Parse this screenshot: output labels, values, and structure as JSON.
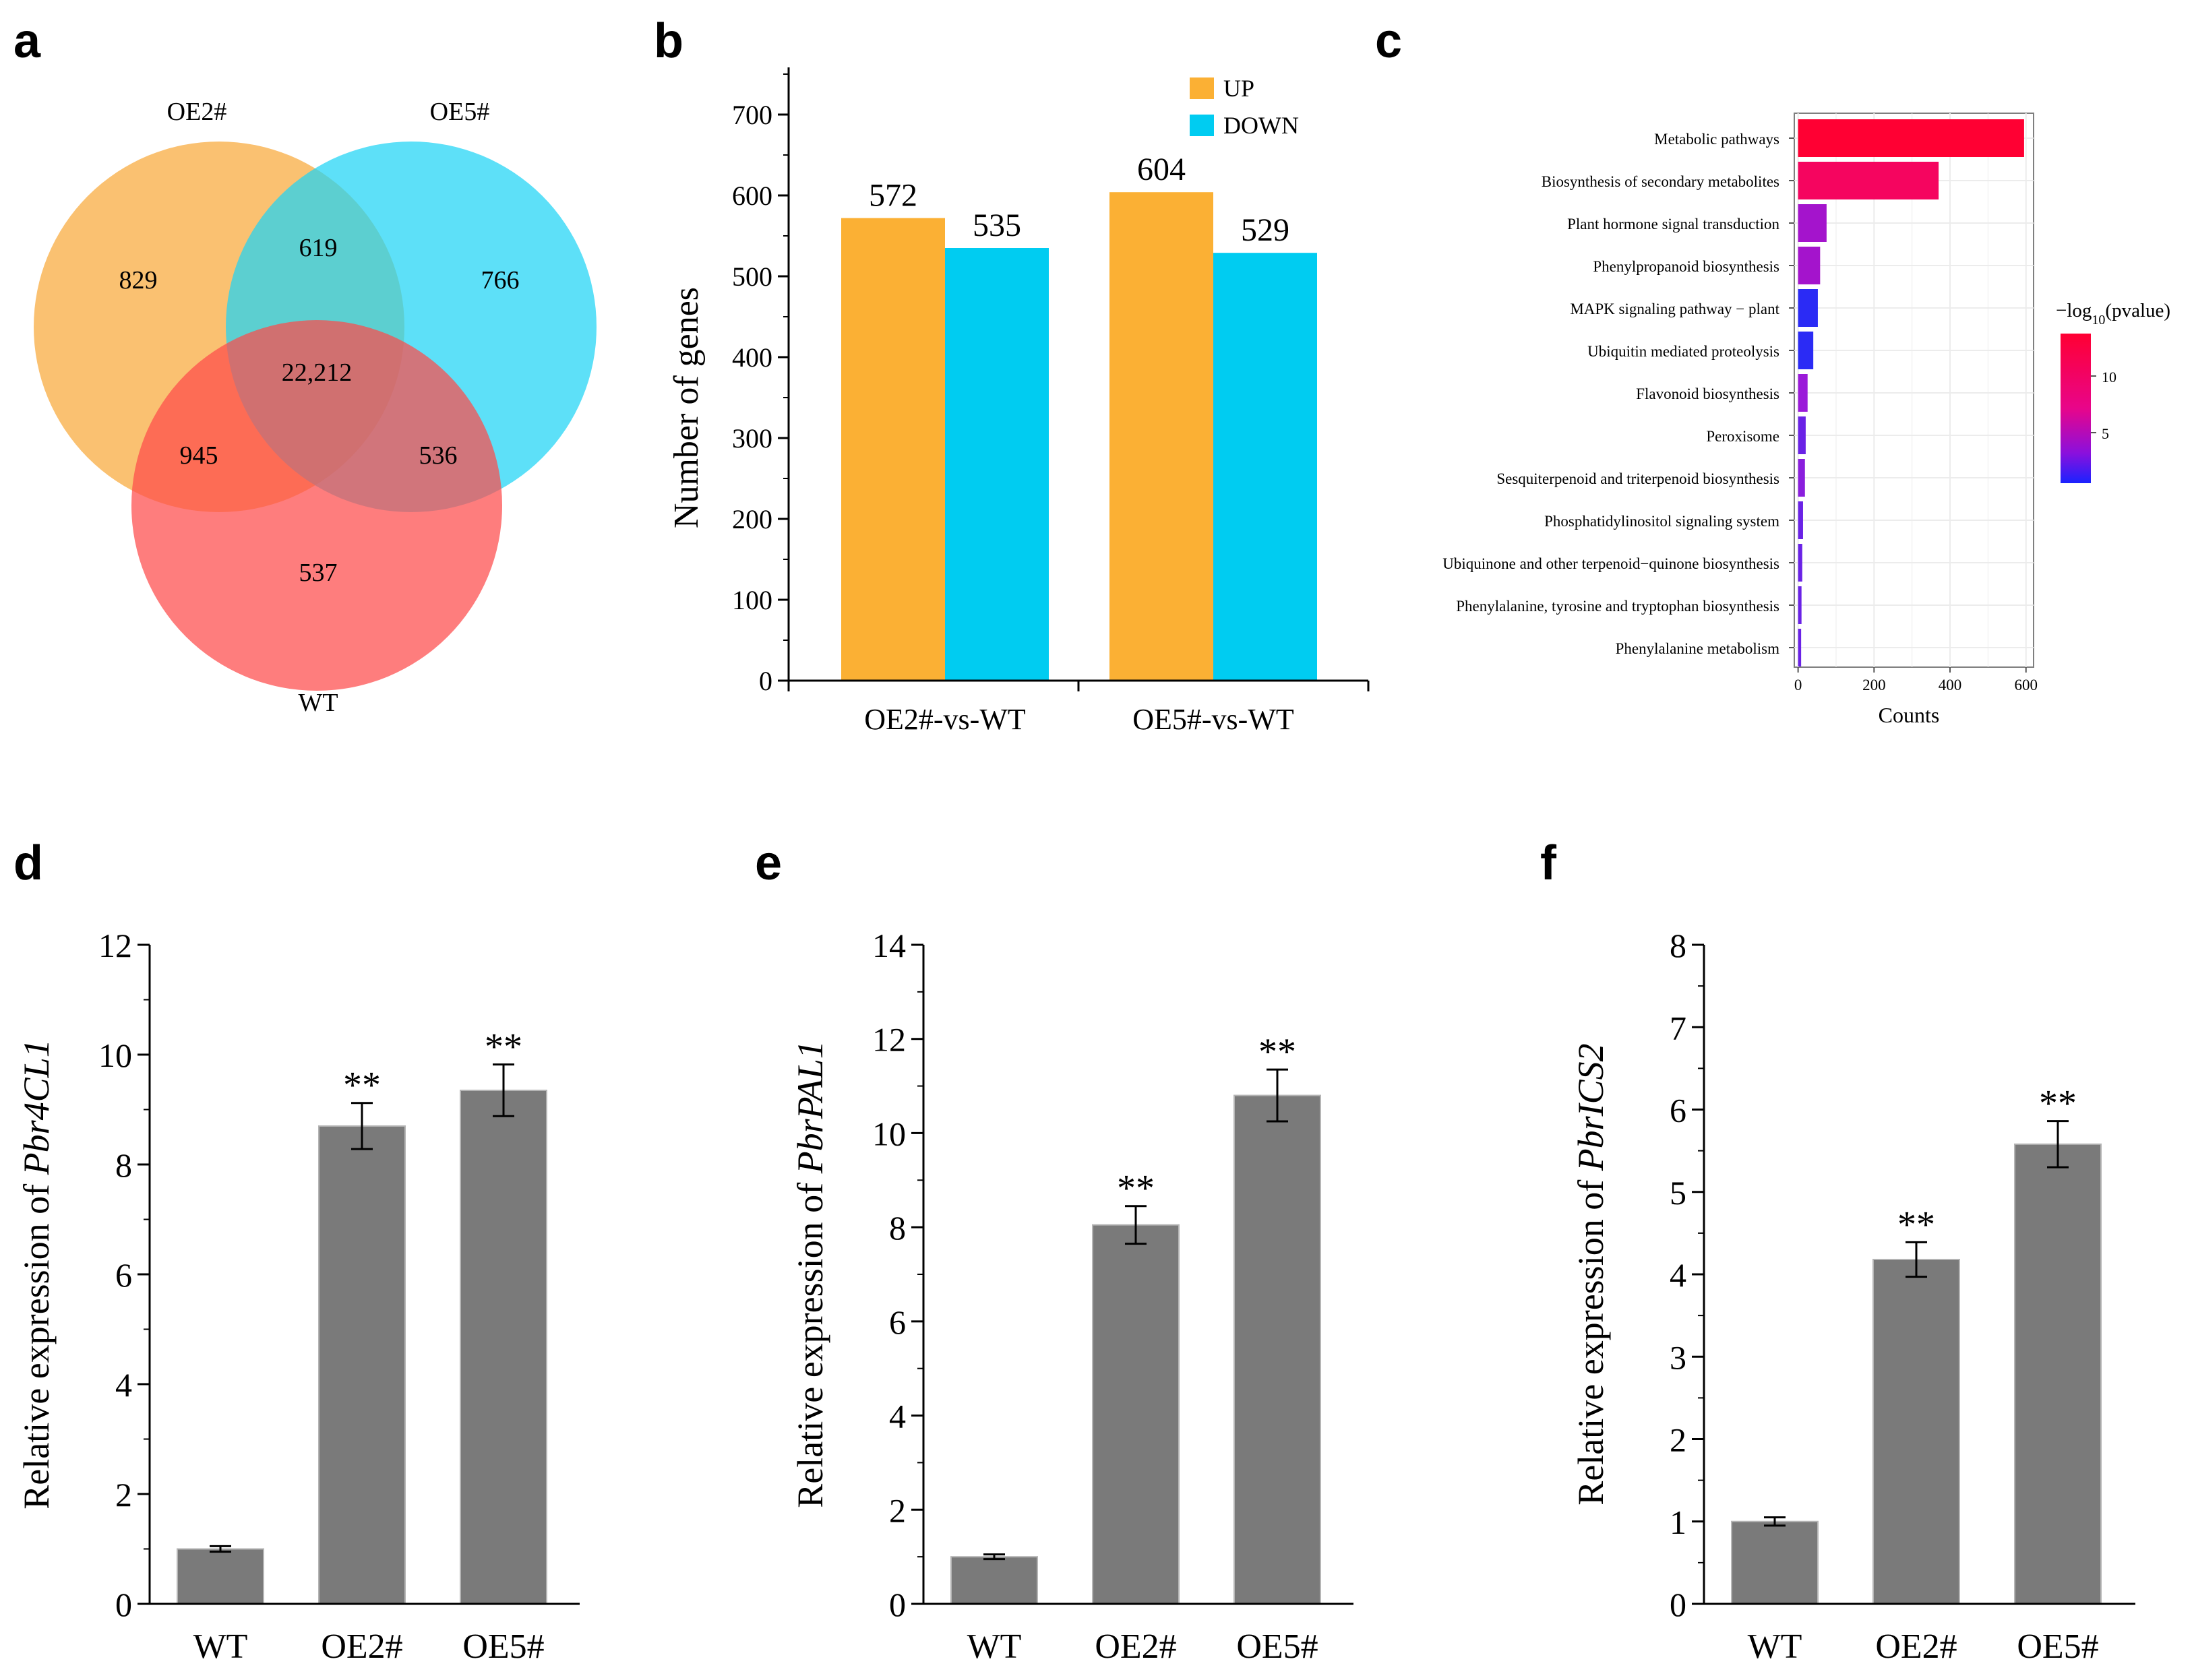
{
  "chart_data": [
    {
      "panel": "a",
      "type": "venn",
      "sets": [
        {
          "name": "OE2#",
          "color": "#F8A93A"
        },
        {
          "name": "OE5#",
          "color": "#1ED4F5"
        },
        {
          "name": "WT",
          "color": "#FE4B4B"
        }
      ],
      "regions": {
        "oe2_only": "829",
        "oe5_only": "766",
        "wt_only": "537",
        "oe2_oe5": "619",
        "oe2_wt": "945",
        "oe5_wt": "536",
        "all": "22,212"
      }
    },
    {
      "panel": "b",
      "type": "bar",
      "categories": [
        "OE2#-vs-WT",
        "OE5#-vs-WT"
      ],
      "series": [
        {
          "name": "UP",
          "color": "#FBB034",
          "values": [
            572,
            604
          ]
        },
        {
          "name": "DOWN",
          "color": "#00CCF1",
          "values": [
            535,
            529
          ]
        }
      ],
      "ylabel": "Number of genes",
      "ylim": [
        0,
        750
      ],
      "yticks": [
        0,
        100,
        200,
        300,
        400,
        500,
        600,
        700
      ]
    },
    {
      "panel": "c",
      "type": "bar",
      "orientation": "horizontal",
      "categories": [
        "Metabolic pathways",
        "Biosynthesis of secondary metabolites",
        "Plant hormone signal transduction",
        "Phenylpropanoid biosynthesis",
        "MAPK signaling pathway − plant",
        "Ubiquitin mediated proteolysis",
        "Flavonoid biosynthesis",
        "Peroxisome",
        "Sesquiterpenoid and triterpenoid biosynthesis",
        "Phosphatidylinositol signaling system",
        "Ubiquinone and other terpenoid−quinone biosynthesis",
        "Phenylalanine, tyrosine and tryptophan biosynthesis",
        "Phenylalanine metabolism"
      ],
      "values": [
        595,
        370,
        75,
        58,
        52,
        40,
        25,
        20,
        18,
        13,
        11,
        9,
        8
      ],
      "colors": [
        "#FF0033",
        "#F5055F",
        "#A414CC",
        "#A414CC",
        "#2B2BF5",
        "#2B2BF5",
        "#9B1AD9",
        "#6A22E6",
        "#8A1EDD",
        "#6A22E6",
        "#6A22E6",
        "#6A22E6",
        "#6A22E6"
      ],
      "xlabel": "Counts",
      "xlim": [
        -10,
        620
      ],
      "xticks": [
        0,
        200,
        400,
        600
      ],
      "legend": {
        "title_prefix": "−log",
        "title_sub": "10",
        "title_suffix": "(pvalue)",
        "ticks": [
          10,
          5
        ],
        "position": "right"
      }
    },
    {
      "panel": "d",
      "type": "bar",
      "categories": [
        "WT",
        "OE2#",
        "OE5#"
      ],
      "values": [
        1.0,
        8.7,
        9.35
      ],
      "errors": [
        0.05,
        0.42,
        0.47
      ],
      "significance": [
        "",
        "**",
        "**"
      ],
      "ylabel_prefix": "Relative expression of",
      "gene": "Pbr4CL1",
      "ylim": [
        0,
        12
      ],
      "yticks": [
        0,
        2,
        4,
        6,
        8,
        10,
        12
      ]
    },
    {
      "panel": "e",
      "type": "bar",
      "categories": [
        "WT",
        "OE2#",
        "OE5#"
      ],
      "values": [
        1.0,
        8.05,
        10.8
      ],
      "errors": [
        0.05,
        0.4,
        0.55
      ],
      "significance": [
        "",
        "**",
        "**"
      ],
      "ylabel_prefix": "Relative expression of",
      "gene": "PbrPAL1",
      "ylim": [
        0,
        14
      ],
      "yticks": [
        0,
        2,
        4,
        6,
        8,
        10,
        12,
        14
      ]
    },
    {
      "panel": "f",
      "type": "bar",
      "categories": [
        "WT",
        "OE2#",
        "OE5#"
      ],
      "values": [
        1.0,
        4.18,
        5.58
      ],
      "errors": [
        0.05,
        0.21,
        0.28
      ],
      "significance": [
        "",
        "**",
        "**"
      ],
      "ylabel_prefix": "Relative expression of",
      "gene": "PbrICS2",
      "ylim": [
        0,
        8
      ],
      "yticks": [
        0,
        1,
        2,
        3,
        4,
        5,
        6,
        7,
        8
      ]
    }
  ],
  "panel_labels": [
    "a",
    "b",
    "c",
    "d",
    "e",
    "f"
  ],
  "bar_color": "#7A7A7A"
}
